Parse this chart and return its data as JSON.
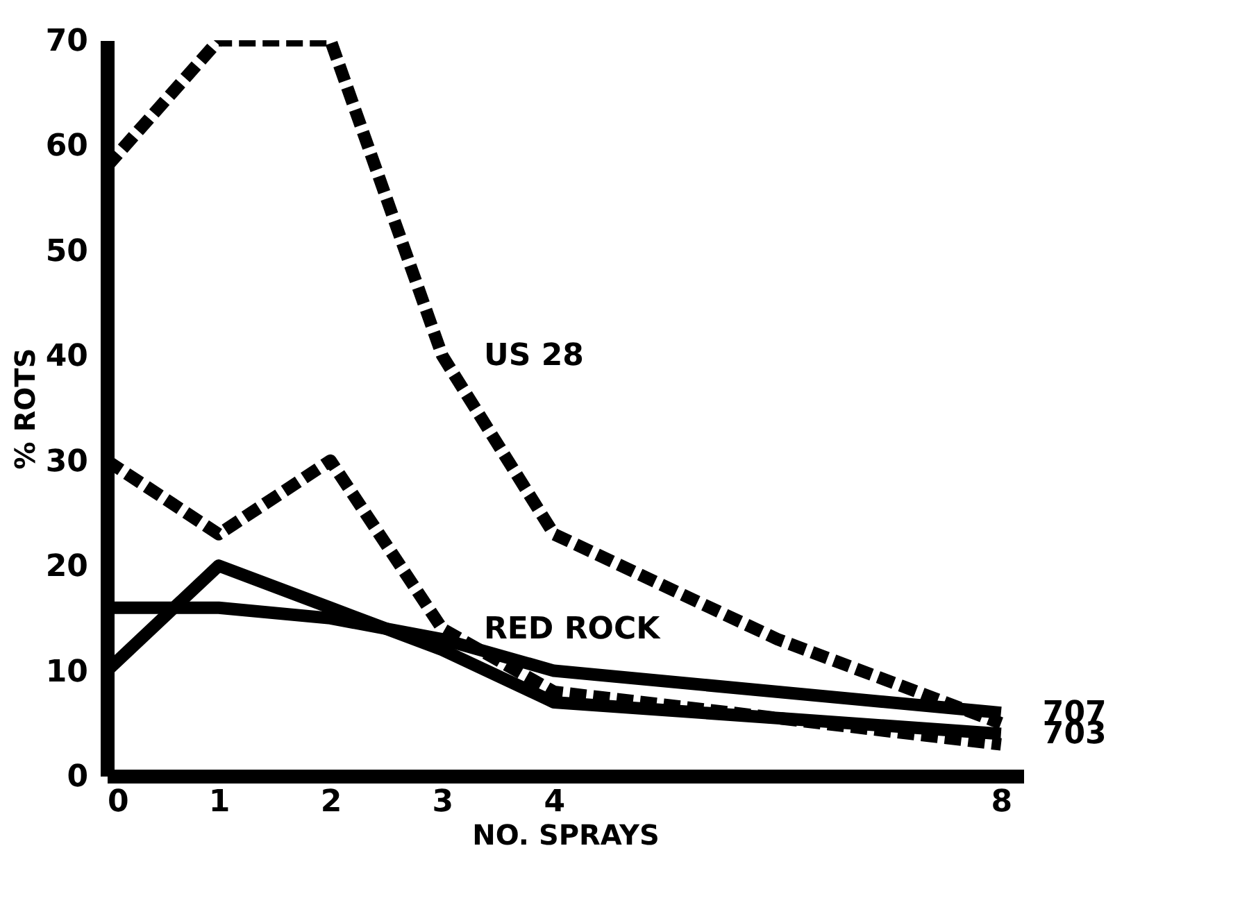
{
  "chart_data": {
    "type": "line",
    "xlabel": "NO. SPRAYS",
    "ylabel": "% ROTS",
    "series": [
      {
        "name": "US 28",
        "color": "#000000",
        "line_style": "dashed",
        "x": [
          0,
          1,
          2,
          3,
          4,
          6,
          8
        ],
        "values": [
          58,
          70,
          70,
          40,
          23,
          13,
          5
        ]
      },
      {
        "name": "RED ROCK",
        "color": "#000000",
        "line_style": "dashed",
        "x": [
          0,
          1,
          2,
          3,
          4,
          8
        ],
        "values": [
          30,
          23,
          30,
          14,
          8,
          3
        ]
      },
      {
        "name": "707",
        "color": "#000000",
        "line_style": "solid",
        "x": [
          0,
          1,
          2,
          3,
          4,
          8
        ],
        "values": [
          16,
          16,
          15,
          13,
          10,
          6
        ]
      },
      {
        "name": "703",
        "color": "#000000",
        "line_style": "solid",
        "x": [
          0,
          1,
          2,
          3,
          4,
          8
        ],
        "values": [
          10,
          20,
          16,
          12,
          7,
          4
        ]
      }
    ],
    "xlim": [
      0,
      8.2
    ],
    "xticks": [
      0,
      1,
      2,
      3,
      4,
      8
    ],
    "ylim": [
      0,
      70
    ],
    "yticks": [
      0,
      10,
      20,
      30,
      40,
      50,
      60,
      70
    ],
    "grid": false,
    "legend": false,
    "marker": "none"
  }
}
